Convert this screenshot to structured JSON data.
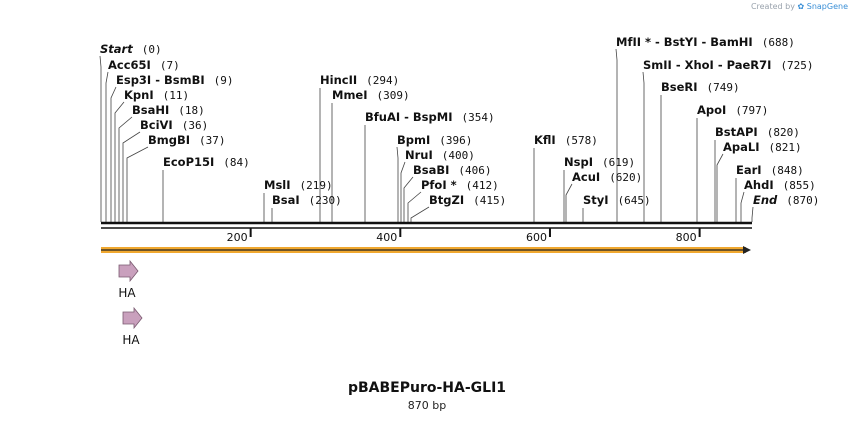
{
  "app": {
    "credit_prefix": "Created by",
    "credit_brand": "SnapGene"
  },
  "map": {
    "title": "pBABEPuro-HA-GLI1",
    "subtitle": "870 bp",
    "length_bp": 870,
    "ruler_ticks": [
      "200",
      "400",
      "600",
      "800"
    ],
    "sites": [
      {
        "name": "Start",
        "italic": true,
        "pos": "(0)"
      },
      {
        "name": "Acc65I",
        "pos": "(7)"
      },
      {
        "name": "Esp3I  -  BsmBI",
        "pos": "(9)"
      },
      {
        "name": "KpnI",
        "pos": "(11)"
      },
      {
        "name": "BsaHI",
        "pos": "(18)"
      },
      {
        "name": "BciVI",
        "pos": "(36)"
      },
      {
        "name": "BmgBI",
        "pos": "(37)"
      },
      {
        "name": "EcoP15I",
        "pos": "(84)"
      },
      {
        "name": "MslI",
        "pos": "(219)"
      },
      {
        "name": "BsaI",
        "pos": "(230)"
      },
      {
        "name": "HincII",
        "pos": "(294)"
      },
      {
        "name": "MmeI",
        "pos": "(309)"
      },
      {
        "name": "BfuAI  -  BspMI",
        "pos": "(354)"
      },
      {
        "name": "BpmI",
        "pos": "(396)"
      },
      {
        "name": "NruI",
        "pos": "(400)"
      },
      {
        "name": "BsaBI",
        "pos": "(406)"
      },
      {
        "name": "PfoI *",
        "pos": "(412)"
      },
      {
        "name": "BtgZI",
        "pos": "(415)"
      },
      {
        "name": "KflI",
        "pos": "(578)"
      },
      {
        "name": "NspI",
        "pos": "(619)"
      },
      {
        "name": "AcuI",
        "pos": "(620)"
      },
      {
        "name": "StyI",
        "pos": "(645)"
      },
      {
        "name": "MfII *  -  BstYI  -  BamHI",
        "pos": "(688)"
      },
      {
        "name": "SmII  -  XhoI  -  PaeR7I",
        "pos": "(725)"
      },
      {
        "name": "BseRI",
        "pos": "(749)"
      },
      {
        "name": "ApoI",
        "pos": "(797)"
      },
      {
        "name": "BstAPI",
        "pos": "(820)"
      },
      {
        "name": "ApaLI",
        "pos": "(821)"
      },
      {
        "name": "EarI",
        "pos": "(848)"
      },
      {
        "name": "AhdI",
        "pos": "(855)"
      },
      {
        "name": "End",
        "italic": true,
        "pos": "(870)"
      }
    ],
    "features": [
      {
        "label": "HA",
        "color": "#c9a0bd"
      },
      {
        "label": "HA",
        "color": "#c9a0bd"
      }
    ],
    "orf_color": "#f0a830"
  }
}
